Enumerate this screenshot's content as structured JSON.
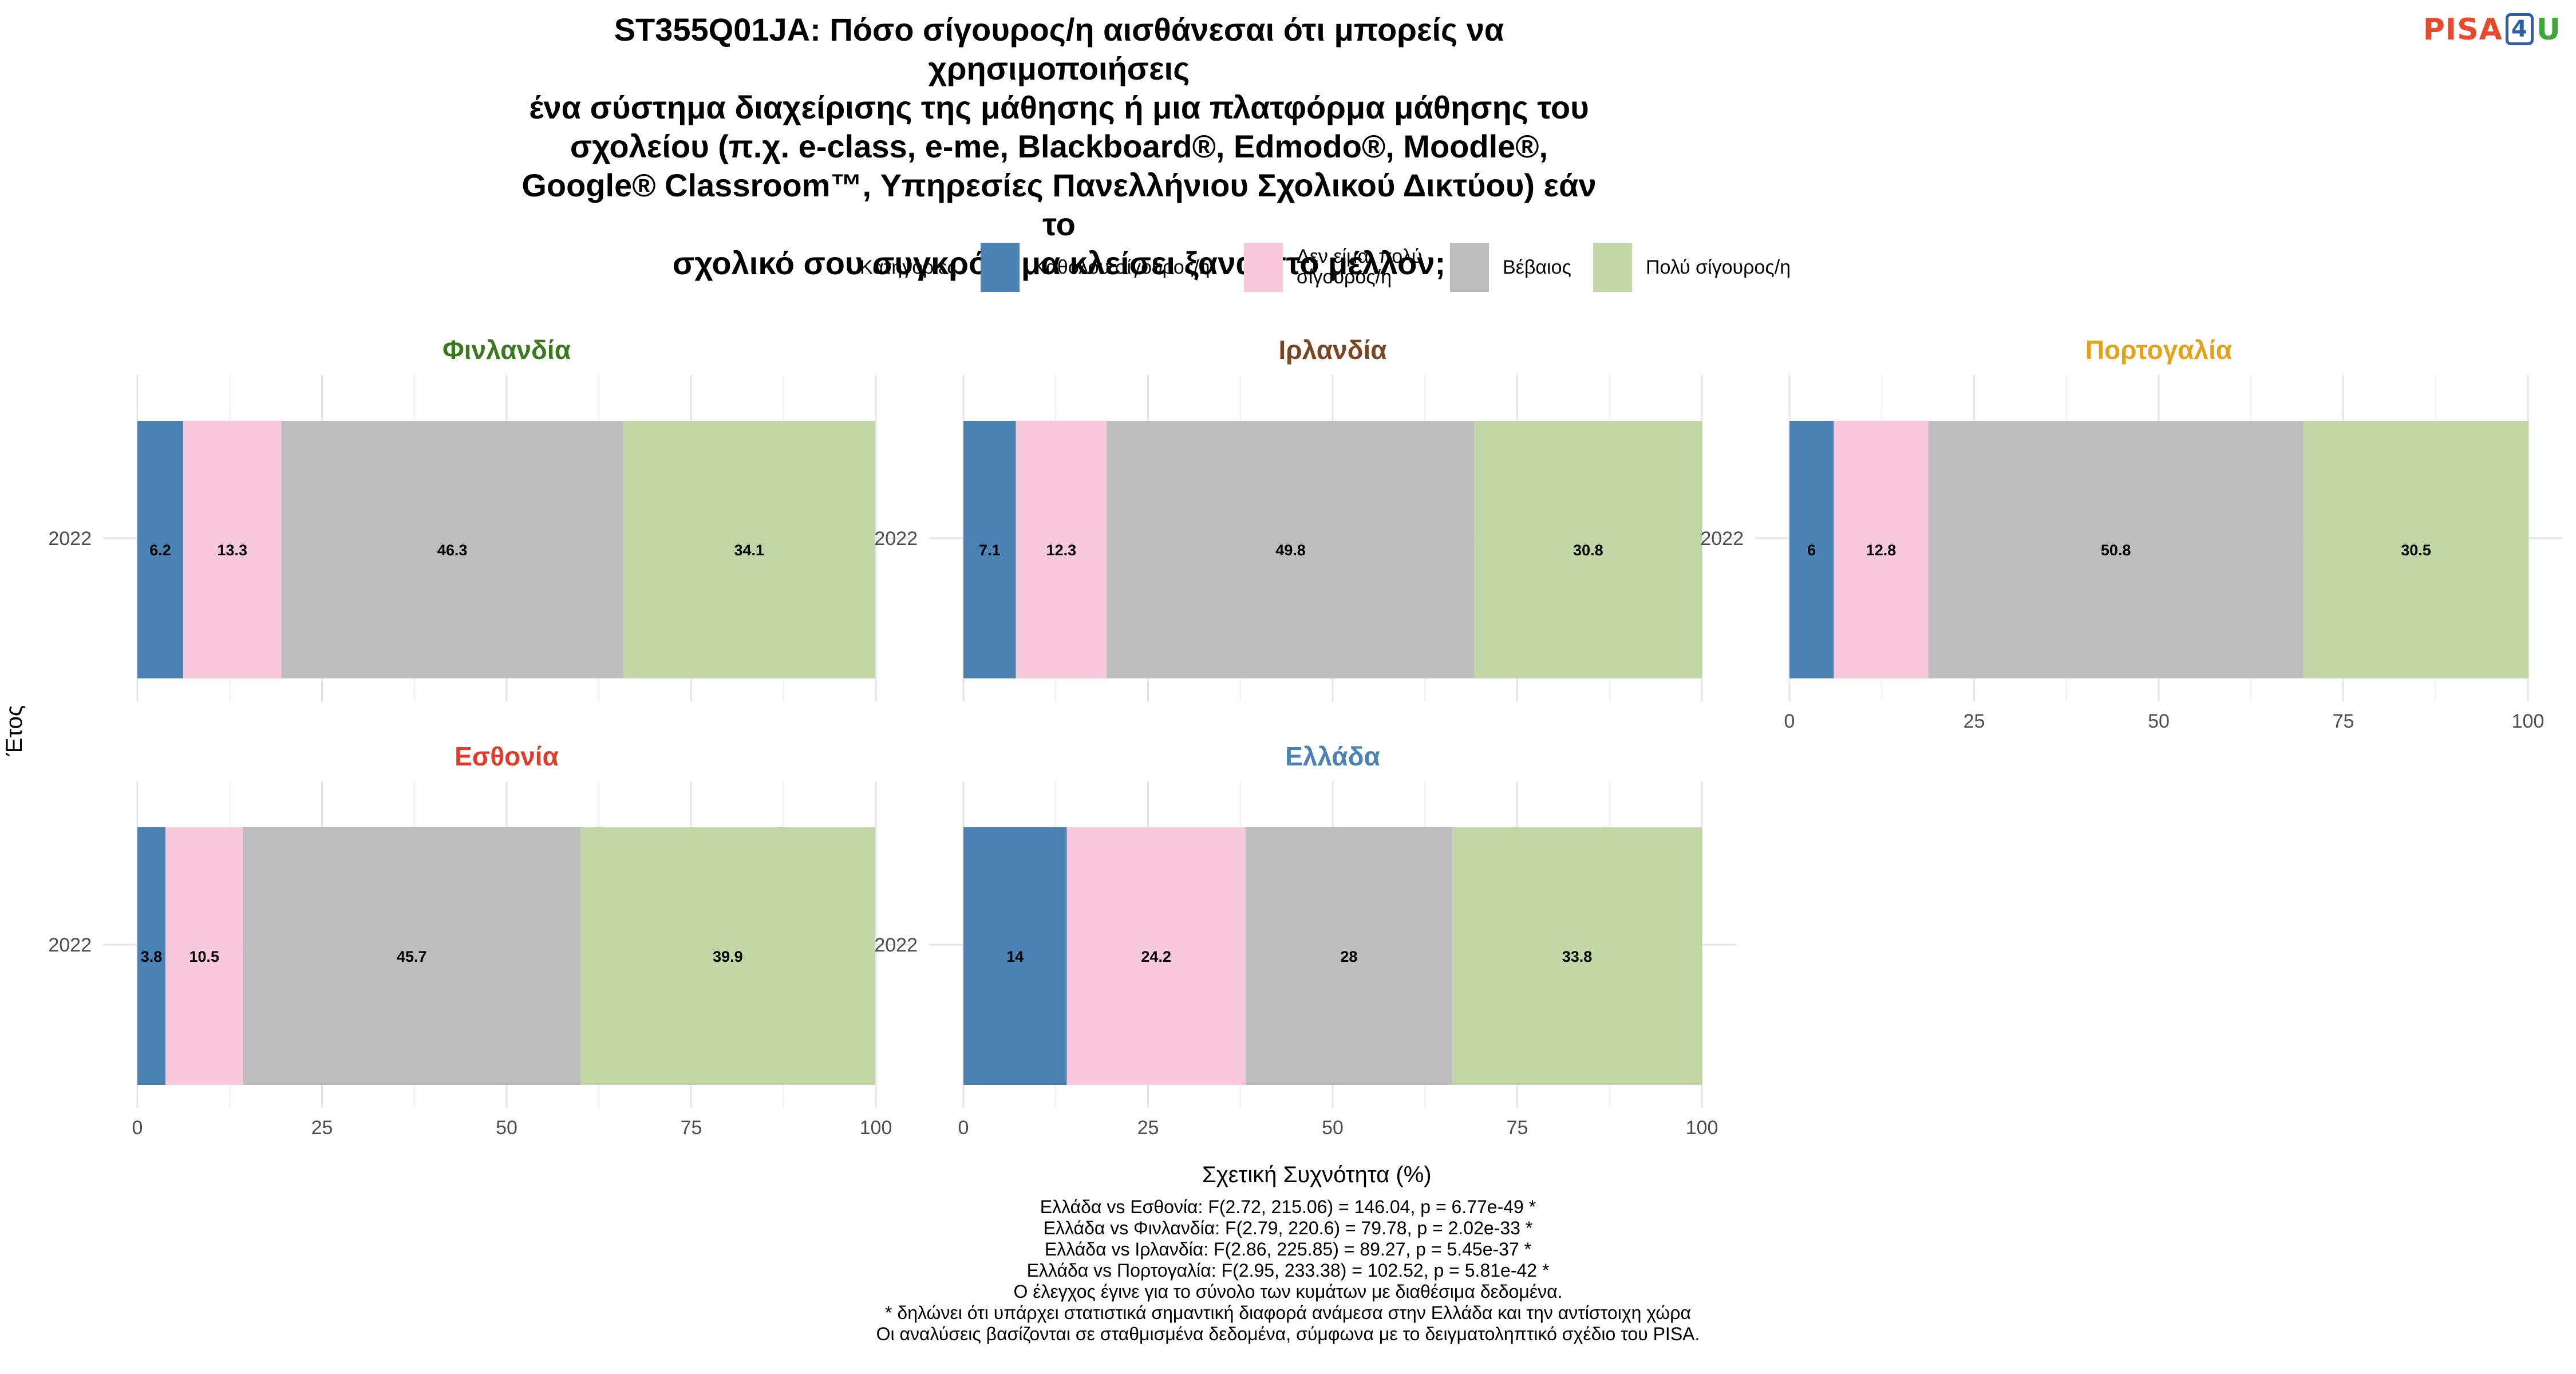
{
  "logo": {
    "part1": "PISA",
    "part2": "4",
    "part3": "U"
  },
  "chart_data": {
    "type": "bar",
    "orientation": "horizontal-stacked",
    "title": "ST355Q01JA: Πόσο σίγουρος/η αισθάνεσαι ότι μπορείς να χρησιμοποιήσεις\nένα σύστημα διαχείρισης της μάθησης ή μια πλατφόρμα μάθησης του\nσχολείου (π.χ. e-class, e-me, Blackboard®, Edmodo®, Moodle®,\nGoogle® Classroom™, Υπηρεσίες Πανελλήνιου Σχολικού Δικτύου) εάν το\nσχολικό σου συγκρότημα κλείσει ξανά στο μέλλον;",
    "xlabel": "Σχετική Συχνότητα (%)",
    "ylabel": "Έτος",
    "xlim": [
      0,
      100
    ],
    "xticks": [
      "0",
      "25",
      "50",
      "75",
      "100"
    ],
    "legend": {
      "title": "Κατηγορίες",
      "position": "top",
      "items": [
        {
          "label": "Καθόλου σίγουρος/η",
          "color": "#4a82b4"
        },
        {
          "label": "Δεν είμαι πολύ σίγουρος/η",
          "label_lines": [
            "Δεν είμαι πολύ",
            "σίγουρος/η"
          ],
          "color": "#f8c8dc"
        },
        {
          "label": "Βέβαιος",
          "color": "#bdbdbd"
        },
        {
          "label": "Πολύ σίγουρος/η",
          "color": "#c2d7a5"
        }
      ]
    },
    "grid": true,
    "panels": [
      {
        "country": "Φινλανδία",
        "title_color": "#3a7a1e",
        "year": "2022",
        "values": [
          6.2,
          13.3,
          46.3,
          34.1
        ],
        "show_xaxis": false
      },
      {
        "country": "Ιρλανδία",
        "title_color": "#7a4621",
        "year": "2022",
        "values": [
          7.1,
          12.3,
          49.8,
          30.8
        ],
        "show_xaxis": false
      },
      {
        "country": "Πορτογαλία",
        "title_color": "#e3a21a",
        "year": "2022",
        "values": [
          6,
          12.8,
          50.8,
          30.5
        ],
        "show_xaxis": true
      },
      {
        "country": "Εσθονία",
        "title_color": "#e03c2a",
        "year": "2022",
        "values": [
          3.8,
          10.5,
          45.7,
          39.9
        ],
        "show_xaxis": true
      },
      {
        "country": "Ελλάδα",
        "title_color": "#4a82b4",
        "year": "2022",
        "values": [
          14,
          24.2,
          28,
          33.8
        ],
        "show_xaxis": true
      }
    ]
  },
  "footer": {
    "lines": [
      "Ελλάδα vs Εσθονία: F(2.72, 215.06) = 146.04, p = 6.77e-49 *",
      "Ελλάδα vs Φινλανδία: F(2.79, 220.6) = 79.78, p = 2.02e-33 *",
      "Ελλάδα vs Ιρλανδία: F(2.86, 225.85) = 89.27, p = 5.45e-37 *",
      "Ελλάδα vs Πορτογαλία: F(2.95, 233.38) = 102.52, p = 5.81e-42 *",
      "Ο έλεγχος έγινε για το σύνολο των κυμάτων με διαθέσιμα δεδομένα.",
      "* δηλώνει ότι υπάρχει στατιστικά σημαντική διαφορά ανάμεσα στην Ελλάδα και την αντίστοιχη χώρα",
      "Οι αναλύσεις βασίζονται σε σταθμισμένα δεδομένα, σύμφωνα με το δειγματοληπτικό σχέδιο του PISA."
    ]
  }
}
